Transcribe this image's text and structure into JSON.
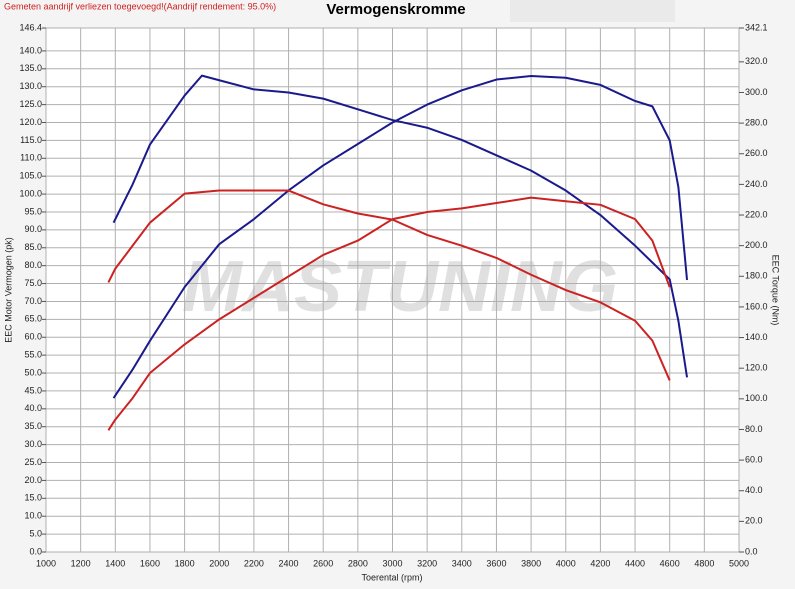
{
  "chart_data": {
    "type": "line",
    "title": "Vermogenskromme",
    "note": "Gemeten aandrijf verliezen toegevoegd!(Aandrijf rendement: 95.0%)",
    "watermark": "MASTUNING",
    "xlabel": "Toerental (rpm)",
    "ylabel": "EEC Motor Vermogen (pk)",
    "y2label": "EEC Torque (Nm)",
    "xlim": [
      1000,
      5000
    ],
    "xticks": [
      1000,
      1200,
      1400,
      1600,
      1800,
      2000,
      2200,
      2400,
      2600,
      2800,
      3000,
      3200,
      3400,
      3600,
      3800,
      4000,
      4200,
      4400,
      4600,
      4800,
      5000
    ],
    "ylim": [
      0,
      146.4
    ],
    "yticks": [
      {
        "value": 0,
        "label": "0.0"
      },
      {
        "value": 5,
        "label": "5.0"
      },
      {
        "value": 10,
        "label": "10.0"
      },
      {
        "value": 15,
        "label": "15.0"
      },
      {
        "value": 20,
        "label": "20.0"
      },
      {
        "value": 25,
        "label": "25.0"
      },
      {
        "value": 30,
        "label": "30.0"
      },
      {
        "value": 35,
        "label": "35.0"
      },
      {
        "value": 40,
        "label": "40.0"
      },
      {
        "value": 45,
        "label": "45.0"
      },
      {
        "value": 50,
        "label": "50.0"
      },
      {
        "value": 55,
        "label": "55.0"
      },
      {
        "value": 60,
        "label": "60.0"
      },
      {
        "value": 65,
        "label": "65.0"
      },
      {
        "value": 70,
        "label": "70.0"
      },
      {
        "value": 75,
        "label": "75.0"
      },
      {
        "value": 80,
        "label": "80.0"
      },
      {
        "value": 85,
        "label": "85.0"
      },
      {
        "value": 90,
        "label": "90.0"
      },
      {
        "value": 95,
        "label": "95.0"
      },
      {
        "value": 100,
        "label": "100.0"
      },
      {
        "value": 105,
        "label": "105.0"
      },
      {
        "value": 110,
        "label": "110.0"
      },
      {
        "value": 115,
        "label": "115.0"
      },
      {
        "value": 120,
        "label": "120.0"
      },
      {
        "value": 125,
        "label": "125.0"
      },
      {
        "value": 130,
        "label": "130.0"
      },
      {
        "value": 135,
        "label": "135.0"
      },
      {
        "value": 140,
        "label": "140.0"
      },
      146.4
    ],
    "y2lim": [
      0,
      342.1
    ],
    "y2ticks": [
      {
        "value": 0,
        "label": "0.0"
      },
      {
        "value": 20,
        "label": "20.0"
      },
      {
        "value": 40,
        "label": "40.0"
      },
      {
        "value": 60,
        "label": "60.0"
      },
      {
        "value": 80,
        "label": "80.0"
      },
      {
        "value": 100,
        "label": "100.0"
      },
      {
        "value": 120,
        "label": "120.0"
      },
      {
        "value": 140,
        "label": "140.0"
      },
      {
        "value": 160,
        "label": "160.0"
      },
      {
        "value": 180,
        "label": "180.0"
      },
      {
        "value": 200,
        "label": "200.0"
      },
      {
        "value": 220,
        "label": "220.0"
      },
      {
        "value": 240,
        "label": "240.0"
      },
      {
        "value": 260,
        "label": "260.0"
      },
      {
        "value": 280,
        "label": "280.0"
      },
      {
        "value": 300,
        "label": "300.0"
      },
      {
        "value": 320,
        "label": "320.0"
      },
      342.1
    ],
    "grid": true,
    "series": [
      {
        "color": "#1a1a8c",
        "axis": "y",
        "x": [
          1390,
          1500,
          1600,
          1800,
          2000,
          2200,
          2400,
          2600,
          2800,
          3000,
          3200,
          3400,
          3600,
          3800,
          4000,
          4200,
          4400,
          4500,
          4600,
          4650,
          4700
        ],
        "values": [
          43,
          51,
          59,
          74,
          86,
          93,
          101,
          108,
          114,
          120,
          125,
          129,
          132,
          133,
          132.5,
          130.5,
          126,
          124.5,
          115,
          102,
          76
        ]
      },
      {
        "color": "#1a1a8c",
        "axis": "y2",
        "x": [
          1390,
          1500,
          1600,
          1800,
          1900,
          2000,
          2200,
          2400,
          2600,
          2800,
          3000,
          3200,
          3400,
          3600,
          3800,
          4000,
          4200,
          4400,
          4600,
          4650,
          4700
        ],
        "values": [
          215,
          240,
          266,
          298,
          311,
          308,
          302,
          300,
          296,
          289,
          282,
          277,
          269,
          259,
          249,
          236,
          220,
          200,
          178,
          151,
          114
        ]
      },
      {
        "color": "#cc2222",
        "axis": "y",
        "x": [
          1360,
          1400,
          1500,
          1600,
          1800,
          2000,
          2200,
          2400,
          2600,
          2800,
          3000,
          3200,
          3400,
          3600,
          3800,
          4000,
          4200,
          4400,
          4500,
          4600
        ],
        "values": [
          34,
          37,
          43,
          50,
          58,
          65,
          71,
          77,
          83,
          87,
          93,
          95,
          96,
          97.5,
          99,
          98,
          97,
          93,
          87,
          74
        ]
      },
      {
        "color": "#cc2222",
        "axis": "y2",
        "x": [
          1360,
          1400,
          1500,
          1600,
          1800,
          2000,
          2200,
          2400,
          2600,
          2800,
          3000,
          3200,
          3400,
          3600,
          3800,
          4000,
          4200,
          4400,
          4500,
          4600
        ],
        "values": [
          176,
          185,
          200,
          215,
          234,
          236,
          236,
          236,
          227,
          221,
          217,
          207,
          200,
          192,
          181,
          171,
          163,
          151,
          138,
          112
        ]
      }
    ]
  }
}
